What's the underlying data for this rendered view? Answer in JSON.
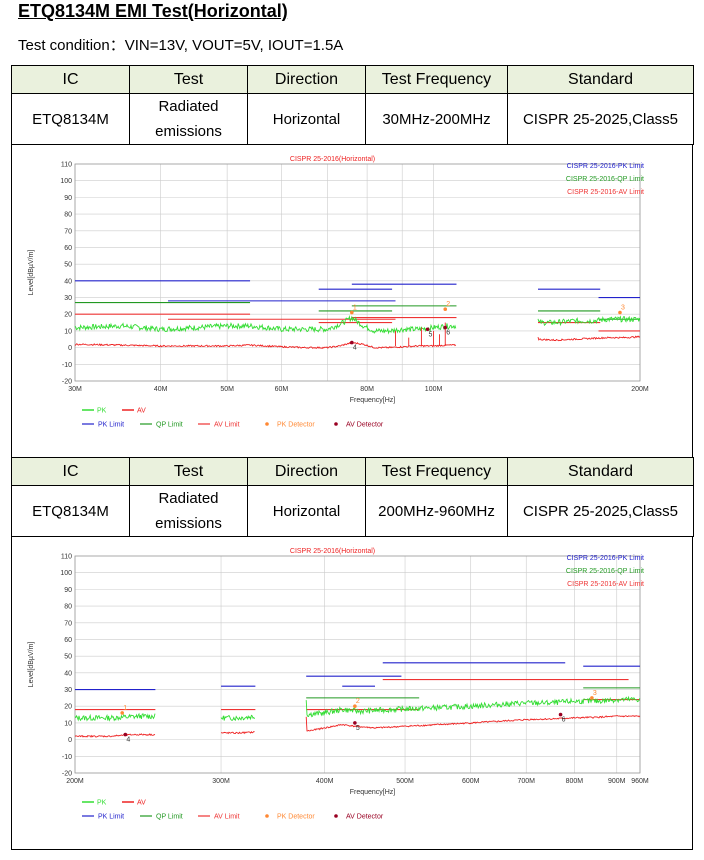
{
  "header": {
    "title": "ETQ8134M EMI Test(Horizontal)",
    "condition": "Test condition：VIN=13V, VOUT=5V, IOUT=1.5A"
  },
  "tables": [
    {
      "columns": [
        "IC",
        "Test",
        "Direction",
        "Test Frequency",
        "Standard"
      ],
      "row": [
        "ETQ8134M",
        "Radiated emissions",
        "Horizontal",
        "30MHz-200MHz",
        "CISPR 25-2025,Class5"
      ]
    },
    {
      "columns": [
        "IC",
        "Test",
        "Direction",
        "Test Frequency",
        "Standard"
      ],
      "row": [
        "ETQ8134M",
        "Radiated emissions",
        "Horizontal",
        "200MHz-960MHz",
        "CISPR 25-2025,Class5"
      ]
    }
  ],
  "colors": {
    "pk": "#33dd33",
    "av": "#ee2222",
    "pk_limit": "#2222cc",
    "qp_limit": "#229922",
    "av_limit": "#ee3333",
    "pk_detector": "#ff8833",
    "av_detector": "#990022",
    "header_bg": "#eaf1dd",
    "grid": "#cccccc"
  },
  "chart_data": [
    {
      "type": "line",
      "title": "CISPR 25-2016(Horizontal)",
      "xlabel": "Frequency[Hz]",
      "ylabel": "Level[dBµV/m]",
      "x_scale": "log",
      "xlim": [
        30,
        200
      ],
      "ylim": [
        -20,
        110
      ],
      "yticks": [
        -20,
        -10,
        0,
        10,
        20,
        30,
        40,
        50,
        60,
        70,
        80,
        90,
        100,
        110
      ],
      "xticks": [
        {
          "v": 30,
          "label": "30M"
        },
        {
          "v": 40,
          "label": "40M"
        },
        {
          "v": 50,
          "label": "50M"
        },
        {
          "v": 60,
          "label": "60M"
        },
        {
          "v": 80,
          "label": "80M"
        },
        {
          "v": 100,
          "label": "100M"
        },
        {
          "v": 200,
          "label": "200M"
        }
      ],
      "minor_xticks": [
        70,
        90
      ],
      "grid": true,
      "legend_top": [
        "CISPR 25-2016-PK Limit",
        "CISPR 25-2016-QP Limit",
        "CISPR 25-2016-AV Limit"
      ],
      "legend_bottom_row1": [
        "PK",
        "AV"
      ],
      "legend_bottom_row2": [
        "PK Limit",
        "QP Limit",
        "AV Limit",
        "PK Detector",
        "AV Detector"
      ],
      "limits": {
        "pk": [
          {
            "f": [
              30,
              54
            ],
            "y": 40
          },
          {
            "f": [
              41,
              88
            ],
            "y": 28
          },
          {
            "f": [
              68,
              87
            ],
            "y": 35
          },
          {
            "f": [
              76,
              108
            ],
            "y": 38
          },
          {
            "f": [
              142,
              175
            ],
            "y": 35
          },
          {
            "f": [
              174,
              200
            ],
            "y": 30
          }
        ],
        "qp": [
          {
            "f": [
              30,
              54
            ],
            "y": 27
          },
          {
            "f": [
              76,
              108
            ],
            "y": 25
          },
          {
            "f": [
              68,
              87
            ],
            "y": 22
          },
          {
            "f": [
              142,
              175
            ],
            "y": 22
          },
          {
            "f": [
              174,
              200
            ],
            "y": 17
          }
        ],
        "av": [
          {
            "f": [
              30,
              54
            ],
            "y": 20
          },
          {
            "f": [
              41,
              88
            ],
            "y": 17
          },
          {
            "f": [
              68,
              87
            ],
            "y": 15
          },
          {
            "f": [
              76,
              108
            ],
            "y": 18
          },
          {
            "f": [
              142,
              175
            ],
            "y": 15
          },
          {
            "f": [
              174,
              200
            ],
            "y": 10
          }
        ]
      },
      "pk_trace": {
        "segments": [
          {
            "f": [
              30,
              108
            ],
            "points": [
              [
                30,
                12
              ],
              [
                35,
                13
              ],
              [
                40,
                11
              ],
              [
                45,
                12
              ],
              [
                50,
                13
              ],
              [
                54,
                13
              ],
              [
                60,
                11
              ],
              [
                65,
                11
              ],
              [
                70,
                11
              ],
              [
                73,
                14
              ],
              [
                76,
                18
              ],
              [
                79,
                13
              ],
              [
                82,
                10
              ],
              [
                86,
                10
              ],
              [
                90,
                11
              ],
              [
                95,
                11
              ],
              [
                100,
                12
              ],
              [
                105,
                13
              ],
              [
                108,
                13
              ]
            ]
          },
          {
            "f": [
              142,
              200
            ],
            "points": [
              [
                142,
                15
              ],
              [
                150,
                15
              ],
              [
                160,
                16
              ],
              [
                170,
                16
              ],
              [
                180,
                17
              ],
              [
                190,
                17
              ],
              [
                200,
                17
              ]
            ]
          }
        ]
      },
      "av_trace": {
        "segments": [
          {
            "f": [
              30,
              108
            ],
            "points": [
              [
                30,
                2
              ],
              [
                35,
                1.5
              ],
              [
                40,
                1
              ],
              [
                45,
                1
              ],
              [
                50,
                1
              ],
              [
                54,
                1.5
              ],
              [
                60,
                0.5
              ],
              [
                65,
                0
              ],
              [
                70,
                0
              ],
              [
                73,
                1
              ],
              [
                76,
                3
              ],
              [
                79,
                2
              ],
              [
                82,
                0
              ],
              [
                86,
                0
              ],
              [
                90,
                0.5
              ],
              [
                95,
                1
              ],
              [
                100,
                1
              ],
              [
                105,
                1.5
              ],
              [
                108,
                1.5
              ]
            ]
          },
          {
            "f": [
              142,
              200
            ],
            "points": [
              [
                142,
                5
              ],
              [
                150,
                4.5
              ],
              [
                160,
                5
              ],
              [
                170,
                5.5
              ],
              [
                180,
                6
              ],
              [
                190,
                6
              ],
              [
                200,
                6.5
              ]
            ]
          }
        ]
      },
      "av_spikes": [
        [
          88,
          10
        ],
        [
          92,
          6
        ],
        [
          96,
          12
        ],
        [
          100,
          10
        ],
        [
          102,
          8
        ],
        [
          104,
          15
        ]
      ],
      "pk_detector": [
        {
          "label": "1",
          "f": 76,
          "y": 21
        },
        {
          "label": "2",
          "f": 104,
          "y": 23
        },
        {
          "label": "3",
          "f": 187,
          "y": 21
        }
      ],
      "av_detector": [
        {
          "label": "4",
          "f": 76,
          "y": 3
        },
        {
          "label": "5",
          "f": 98,
          "y": 11
        },
        {
          "label": "6",
          "f": 104,
          "y": 12
        }
      ]
    },
    {
      "type": "line",
      "title": "CISPR 25-2016(Horizontal)",
      "xlabel": "Frequency[Hz]",
      "ylabel": "Level[dBµV/m]",
      "x_scale": "log",
      "xlim": [
        200,
        960
      ],
      "ylim": [
        -20,
        110
      ],
      "yticks": [
        -20,
        -10,
        0,
        10,
        20,
        30,
        40,
        50,
        60,
        70,
        80,
        90,
        100,
        110
      ],
      "xticks": [
        {
          "v": 200,
          "label": "200M"
        },
        {
          "v": 300,
          "label": "300M"
        },
        {
          "v": 400,
          "label": "400M"
        },
        {
          "v": 500,
          "label": "500M"
        },
        {
          "v": 600,
          "label": "600M"
        },
        {
          "v": 700,
          "label": "700M"
        },
        {
          "v": 800,
          "label": "800M"
        },
        {
          "v": 900,
          "label": "900M"
        },
        {
          "v": 960,
          "label": "960M"
        }
      ],
      "minor_xticks": [],
      "grid": true,
      "legend_top": [
        "CISPR 25-2016-PK Limit",
        "CISPR 25-2016-QP Limit",
        "CISPR 25-2016-AV Limit"
      ],
      "legend_bottom_row1": [
        "PK",
        "AV"
      ],
      "legend_bottom_row2": [
        "PK Limit",
        "QP Limit",
        "AV Limit",
        "PK Detector",
        "AV Detector"
      ],
      "limits": {
        "pk": [
          {
            "f": [
              200,
              250
            ],
            "y": 30
          },
          {
            "f": [
              300,
              330
            ],
            "y": 32
          },
          {
            "f": [
              380,
              495
            ],
            "y": 38
          },
          {
            "f": [
              420,
              460
            ],
            "y": 32
          },
          {
            "f": [
              470,
              780
            ],
            "y": 46
          },
          {
            "f": [
              820,
              960
            ],
            "y": 44
          }
        ],
        "qp": [
          {
            "f": [
              380,
              520
            ],
            "y": 25
          },
          {
            "f": [
              820,
              960
            ],
            "y": 31
          }
        ],
        "av": [
          {
            "f": [
              200,
              250
            ],
            "y": 18
          },
          {
            "f": [
              300,
              330
            ],
            "y": 18
          },
          {
            "f": [
              380,
              520
            ],
            "y": 18
          },
          {
            "f": [
              470,
              930
            ],
            "y": 36
          },
          {
            "f": [
              820,
              960
            ],
            "y": 24
          }
        ]
      },
      "pk_trace": {
        "segments": [
          {
            "f": [
              200,
              250
            ],
            "points": [
              [
                200,
                13
              ],
              [
                220,
                13
              ],
              [
                240,
                14
              ],
              [
                250,
                14
              ]
            ]
          },
          {
            "f": [
              300,
              330
            ],
            "points": [
              [
                300,
                13
              ],
              [
                315,
                13
              ],
              [
                330,
                14
              ]
            ]
          },
          {
            "f": [
              380,
              960
            ],
            "points": [
              [
                380,
                15
              ],
              [
                400,
                16
              ],
              [
                420,
                18
              ],
              [
                440,
                17
              ],
              [
                480,
                18
              ],
              [
                540,
                19
              ],
              [
                600,
                20
              ],
              [
                650,
                21
              ],
              [
                700,
                22
              ],
              [
                750,
                22
              ],
              [
                800,
                23
              ],
              [
                850,
                23
              ],
              [
                900,
                24
              ],
              [
                960,
                24
              ]
            ]
          }
        ]
      },
      "av_trace": {
        "segments": [
          {
            "f": [
              200,
              250
            ],
            "points": [
              [
                200,
                2
              ],
              [
                220,
                2
              ],
              [
                235,
                3
              ],
              [
                250,
                3
              ]
            ]
          },
          {
            "f": [
              300,
              330
            ],
            "points": [
              [
                300,
                4
              ],
              [
                315,
                4
              ],
              [
                330,
                4.5
              ]
            ]
          },
          {
            "f": [
              380,
              960
            ],
            "points": [
              [
                380,
                5
              ],
              [
                400,
                7
              ],
              [
                420,
                9
              ],
              [
                435,
                8
              ],
              [
                460,
                7
              ],
              [
                500,
                8
              ],
              [
                550,
                9
              ],
              [
                600,
                10
              ],
              [
                650,
                11
              ],
              [
                700,
                12
              ],
              [
                760,
                12.5
              ],
              [
                800,
                13
              ],
              [
                860,
                13.5
              ],
              [
                900,
                14
              ],
              [
                960,
                14
              ]
            ]
          }
        ]
      },
      "av_spikes": [],
      "pk_detector": [
        {
          "label": "1",
          "f": 228,
          "y": 16
        },
        {
          "label": "2",
          "f": 435,
          "y": 20
        },
        {
          "label": "3",
          "f": 840,
          "y": 25
        }
      ],
      "av_detector": [
        {
          "label": "4",
          "f": 230,
          "y": 3
        },
        {
          "label": "5",
          "f": 435,
          "y": 10
        },
        {
          "label": "6",
          "f": 770,
          "y": 15
        }
      ]
    }
  ]
}
